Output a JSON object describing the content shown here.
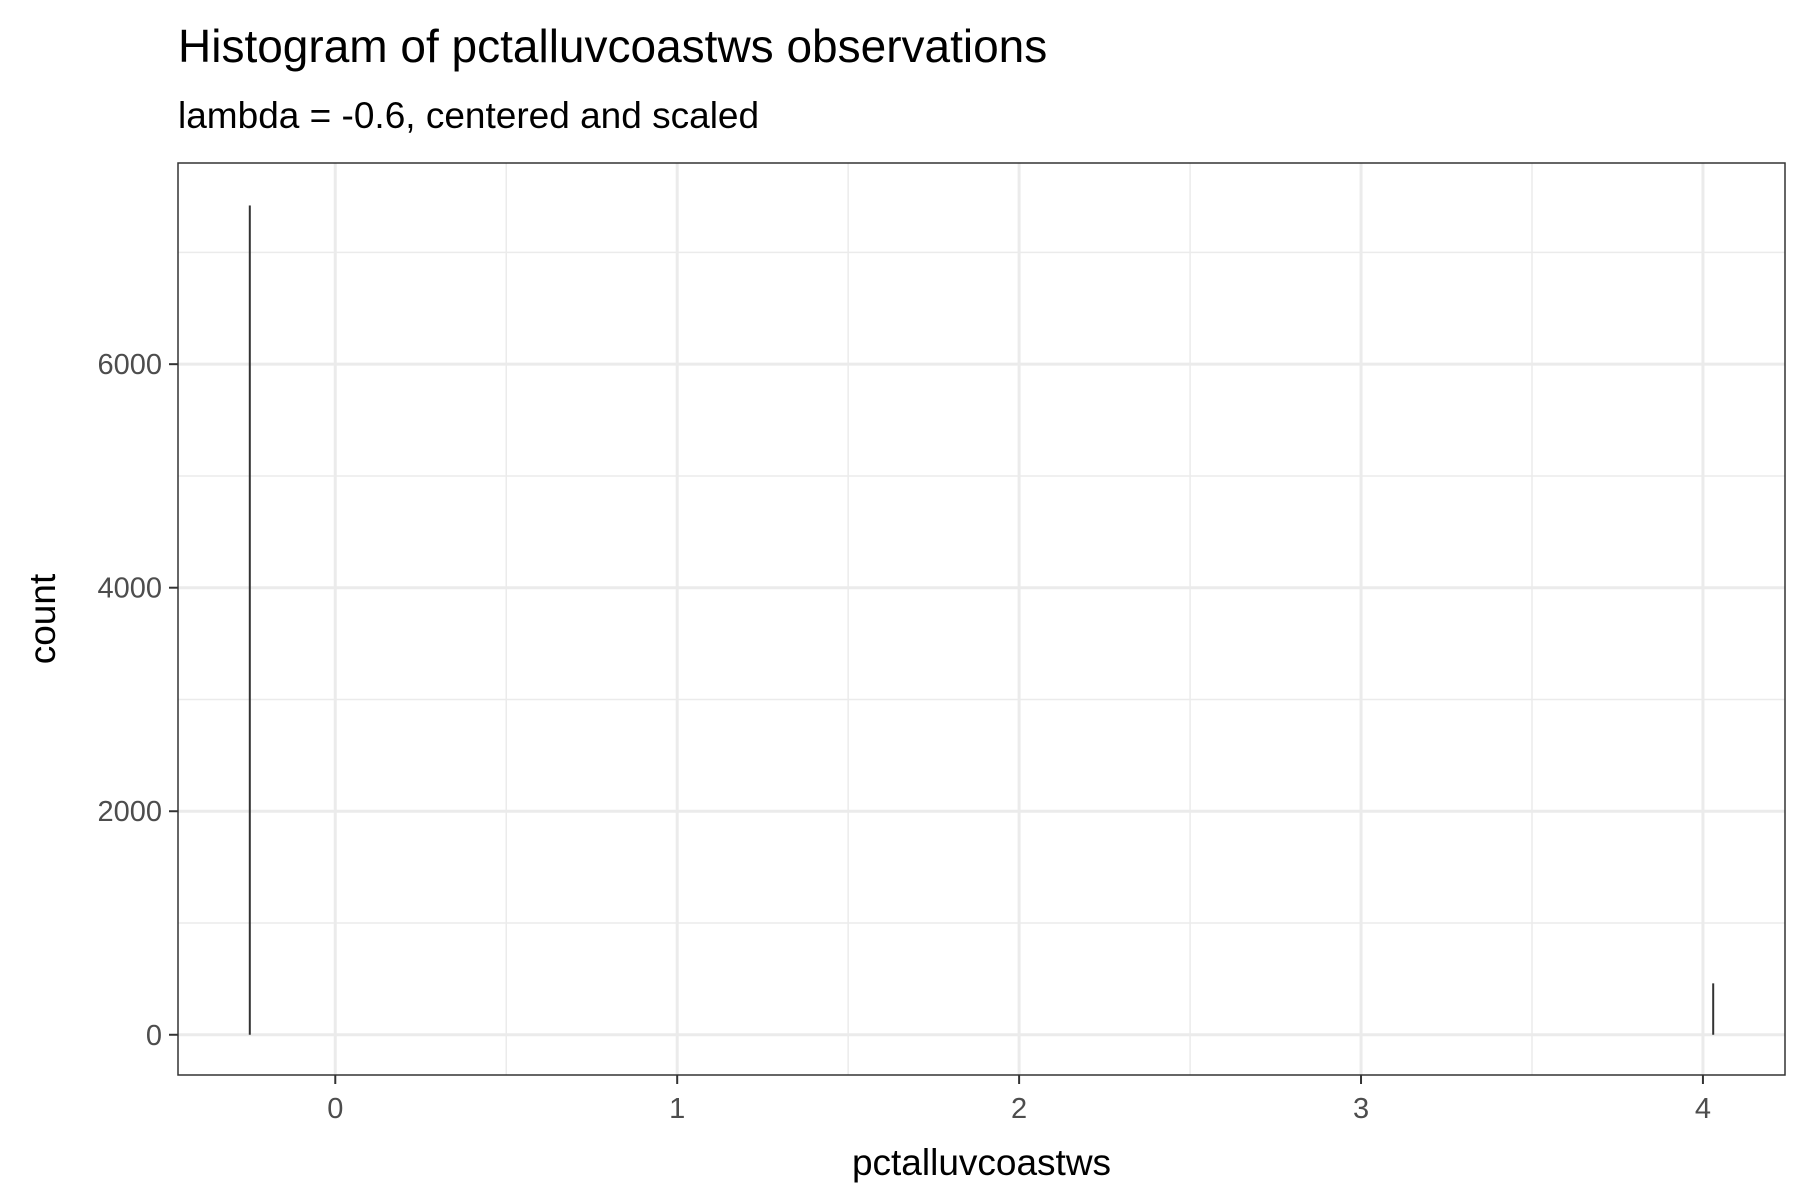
{
  "chart_data": {
    "type": "bar",
    "title": "Histogram of pctalluvcoastws observations",
    "subtitle": "lambda = -0.6, centered and scaled",
    "xlabel": "pctalluvcoastws",
    "ylabel": "count",
    "xlim": [
      -0.46,
      4.24
    ],
    "ylim": [
      -360,
      7800
    ],
    "x_ticks": [
      0,
      1,
      2,
      3,
      4
    ],
    "y_ticks": [
      0,
      2000,
      4000,
      6000
    ],
    "x_minor_ticks": [
      0.5,
      1.5,
      2.5,
      3.5
    ],
    "y_minor_ticks": [
      1000,
      3000,
      5000,
      7000
    ],
    "bins": [
      {
        "x": -0.25,
        "count": 7420
      },
      {
        "x": 4.03,
        "count": 460
      }
    ],
    "grid": true,
    "colors": {
      "bar": "#333333",
      "grid": "#ebebeb",
      "panel_border": "#333333",
      "tick_label": "#4d4d4d"
    }
  }
}
